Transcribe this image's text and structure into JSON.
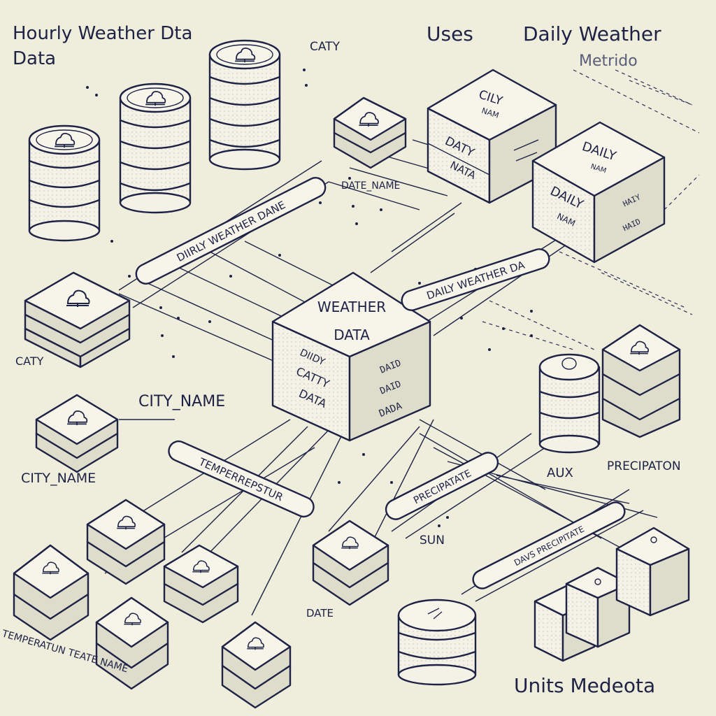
{
  "colors": {
    "background": "#efeddc",
    "ink": "#1e2346",
    "face": "#f6f4ea",
    "side": "#dedccb"
  },
  "titles": {
    "hourly_line1": "Hourly Weather Dta",
    "hourly_line2": "Data",
    "uses": "Uses",
    "daily_line1": "Daily Weather",
    "daily_line2": "Metrido",
    "units": "Units Medeota"
  },
  "central_block": {
    "title_line1": "WEATHER",
    "title_line2": "DATA",
    "left_line1": "DIIDY",
    "left_line2": "CATTY",
    "left_line3": "DATA",
    "right_line1": "DAID",
    "right_line2": "DAID",
    "right_line3": "DADA"
  },
  "daily_block_1": {
    "top_line1": "CILY",
    "top_line2": "NAM",
    "face_line1": "DATY",
    "face_line2": "NATA"
  },
  "daily_block_2": {
    "top_line1": "DAILY",
    "top_line2": "NAM",
    "face_line1": "DAILY",
    "face_line2": "NAM",
    "side_line1": "HAIY",
    "side_line2": "HAID"
  },
  "tags": {
    "hourly": "DIIRLY WEATHER DANE",
    "daily": "DAILY WEATHER DA",
    "temperature": "TEMPERREPSTUR",
    "precipitate": "PRECIPATATE",
    "precipitate2": "DAVS PRECIPITATE"
  },
  "labels": {
    "caty_top": "CATY",
    "date_name": "DATE_NAME",
    "caty_left": "CATY",
    "city_name_mid": "CITY_NAME",
    "city_name_left": "CITY_NAME",
    "aux": "AUX",
    "precipitation": "PRECIPATON",
    "sun": "SUN",
    "date_bottom": "DATE",
    "temperature_bottom": "TEMPERATUN TEATE NAME"
  }
}
